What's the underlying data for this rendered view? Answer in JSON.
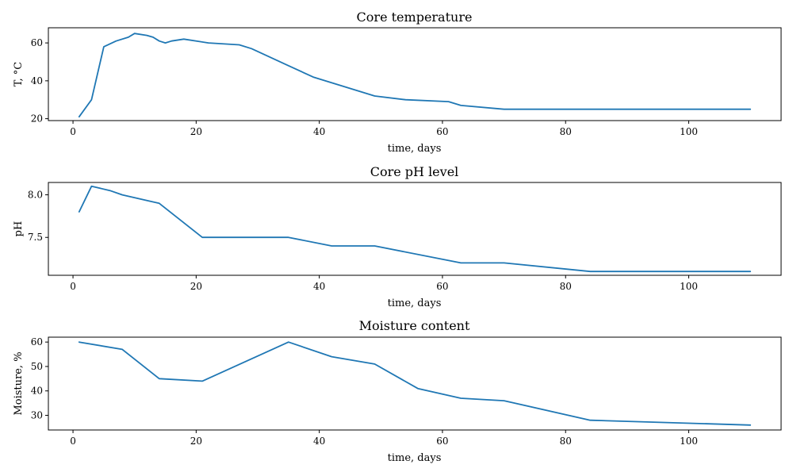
{
  "line_color": "#1f77b4",
  "chart_data": [
    {
      "type": "line",
      "title": "Core temperature",
      "xlabel": "time, days",
      "ylabel": "T, °C",
      "xlim": [
        -4,
        115
      ],
      "ylim": [
        19,
        68
      ],
      "xticks": [
        0,
        20,
        40,
        60,
        80,
        100
      ],
      "yticks": [
        20,
        40,
        60
      ],
      "x": [
        1,
        3,
        5,
        7,
        9,
        10,
        12,
        13,
        14,
        15,
        16,
        18,
        22,
        27,
        29,
        35,
        39,
        49,
        54,
        61,
        63,
        70,
        110
      ],
      "y": [
        21,
        30,
        58,
        61,
        63,
        65,
        64,
        63,
        61,
        60,
        61,
        62,
        60,
        59,
        57,
        48,
        42,
        32,
        30,
        29,
        27,
        25,
        25
      ]
    },
    {
      "type": "line",
      "title": "Core pH level",
      "xlabel": "time, days",
      "ylabel": "pH",
      "xlim": [
        -4,
        115
      ],
      "ylim": [
        7.055,
        8.145
      ],
      "xticks": [
        0,
        20,
        40,
        60,
        80,
        100
      ],
      "yticks": [
        7.5,
        8.0
      ],
      "ytick_labels": [
        "7.5",
        "8.0"
      ],
      "x": [
        1,
        3,
        6,
        8,
        14,
        21,
        35,
        42,
        49,
        63,
        70,
        84,
        110
      ],
      "y": [
        7.8,
        8.1,
        8.05,
        8.0,
        7.9,
        7.5,
        7.5,
        7.4,
        7.4,
        7.2,
        7.2,
        7.1,
        7.1
      ]
    },
    {
      "type": "line",
      "title": "Moisture content",
      "xlabel": "time, days",
      "ylabel": "Moisture, %",
      "xlim": [
        -4,
        115
      ],
      "ylim": [
        24,
        62
      ],
      "xticks": [
        0,
        20,
        40,
        60,
        80,
        100
      ],
      "yticks": [
        30,
        40,
        50,
        60
      ],
      "x": [
        1,
        8,
        14,
        21,
        35,
        42,
        49,
        56,
        63,
        70,
        84,
        110
      ],
      "y": [
        60,
        57,
        45,
        44,
        60,
        54,
        51,
        41,
        37,
        36,
        28,
        26
      ]
    }
  ]
}
